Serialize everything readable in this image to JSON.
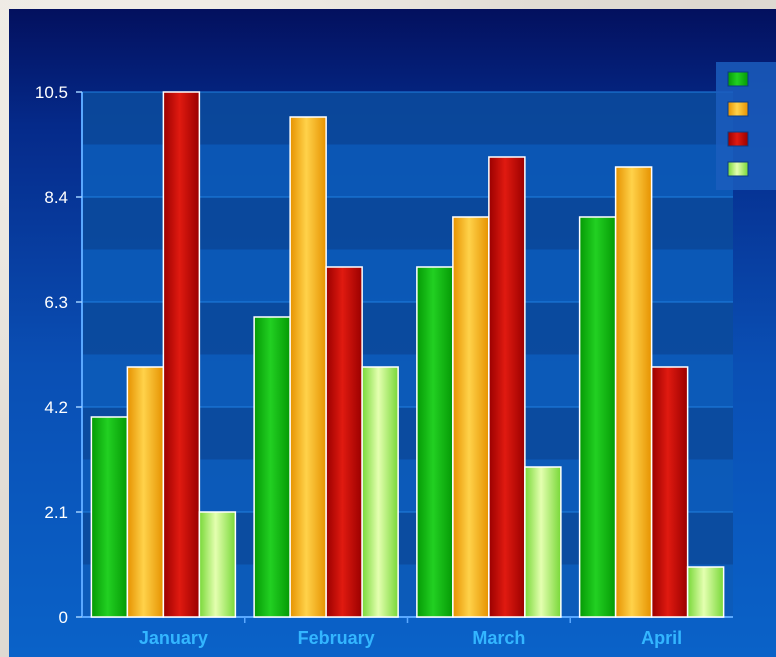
{
  "chart_data": {
    "type": "bar",
    "title": "",
    "xlabel": "",
    "ylabel": "",
    "categories": [
      "January",
      "February",
      "March",
      "April"
    ],
    "yticks": [
      "0",
      "2.1",
      "4.2",
      "6.3",
      "8.4",
      "10.5"
    ],
    "ylim": [
      0,
      10.5
    ],
    "grid": true,
    "legend_position": "top-right",
    "series": [
      {
        "color_top": "#22d022",
        "color_bottom": "#059a05",
        "values": [
          4,
          6,
          7,
          8
        ]
      },
      {
        "color_top": "#ffd24a",
        "color_bottom": "#e69200",
        "values": [
          5,
          10,
          8,
          9
        ]
      },
      {
        "color_top": "#e01a10",
        "color_bottom": "#9a0000",
        "values": [
          10.5,
          7,
          9.2,
          5
        ]
      },
      {
        "color_top": "#e4ffb0",
        "color_bottom": "#78d838",
        "values": [
          2.1,
          5,
          3,
          1
        ]
      }
    ]
  }
}
